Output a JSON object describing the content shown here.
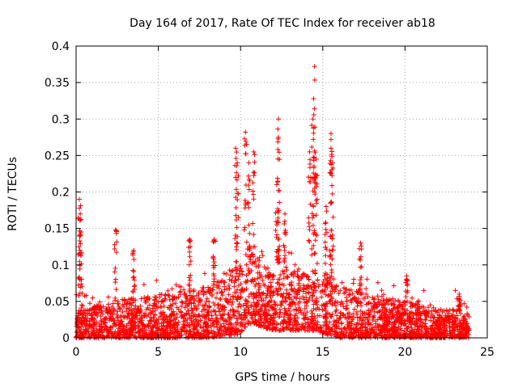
{
  "chart_data": {
    "type": "scatter",
    "title": "Day 164 of 2017, Rate Of TEC Index for receiver ab18",
    "xlabel": "GPS time / hours",
    "ylabel": "ROTI / TECUs",
    "xlim": [
      0,
      25
    ],
    "ylim": [
      0,
      0.4
    ],
    "xticks": [
      0,
      5,
      10,
      15,
      20,
      25
    ],
    "yticks": [
      0,
      0.05,
      0.1,
      0.15,
      0.2,
      0.25,
      0.3,
      0.35,
      0.4
    ],
    "xtick_labels": [
      "0",
      "5",
      "10",
      "15",
      "20",
      "25"
    ],
    "ytick_labels": [
      "0",
      "0.05",
      "0.1",
      "0.15",
      "0.2",
      "0.25",
      "0.3",
      "0.35",
      "0.4"
    ],
    "grid": true,
    "marker": "+",
    "series_color": "#ff0000",
    "x_range_data": [
      0,
      23.9
    ],
    "peak_points": [
      {
        "x": 0.2,
        "y": 0.19
      },
      {
        "x": 0.25,
        "y": 0.17
      },
      {
        "x": 0.3,
        "y": 0.145
      },
      {
        "x": 2.4,
        "y": 0.148
      },
      {
        "x": 3.5,
        "y": 0.12
      },
      {
        "x": 6.9,
        "y": 0.135
      },
      {
        "x": 8.4,
        "y": 0.135
      },
      {
        "x": 9.7,
        "y": 0.26
      },
      {
        "x": 9.8,
        "y": 0.24
      },
      {
        "x": 10.3,
        "y": 0.282
      },
      {
        "x": 10.5,
        "y": 0.24
      },
      {
        "x": 10.8,
        "y": 0.255
      },
      {
        "x": 12.3,
        "y": 0.3
      },
      {
        "x": 12.3,
        "y": 0.275
      },
      {
        "x": 12.2,
        "y": 0.21
      },
      {
        "x": 12.7,
        "y": 0.17
      },
      {
        "x": 14.2,
        "y": 0.255
      },
      {
        "x": 14.5,
        "y": 0.372
      },
      {
        "x": 14.5,
        "y": 0.314
      },
      {
        "x": 14.4,
        "y": 0.3
      },
      {
        "x": 14.6,
        "y": 0.245
      },
      {
        "x": 15.5,
        "y": 0.28
      },
      {
        "x": 15.5,
        "y": 0.26
      },
      {
        "x": 15.6,
        "y": 0.24
      },
      {
        "x": 15.2,
        "y": 0.18
      },
      {
        "x": 17.3,
        "y": 0.13
      },
      {
        "x": 20.1,
        "y": 0.085
      },
      {
        "x": 23.3,
        "y": 0.06
      }
    ],
    "baseline_profile": [
      {
        "x": 0,
        "low": 0.0,
        "high": 0.035
      },
      {
        "x": 2,
        "low": 0.0,
        "high": 0.05
      },
      {
        "x": 5,
        "low": 0.0,
        "high": 0.06
      },
      {
        "x": 8,
        "low": 0.0,
        "high": 0.07
      },
      {
        "x": 9.9,
        "low": 0.005,
        "high": 0.1
      },
      {
        "x": 10.5,
        "low": 0.02,
        "high": 0.12
      },
      {
        "x": 12,
        "low": 0.01,
        "high": 0.09
      },
      {
        "x": 14.5,
        "low": 0.01,
        "high": 0.1
      },
      {
        "x": 16,
        "low": 0.0,
        "high": 0.07
      },
      {
        "x": 18,
        "low": 0.0,
        "high": 0.06
      },
      {
        "x": 21,
        "low": 0.0,
        "high": 0.045
      },
      {
        "x": 23.9,
        "low": 0.0,
        "high": 0.035
      }
    ]
  }
}
